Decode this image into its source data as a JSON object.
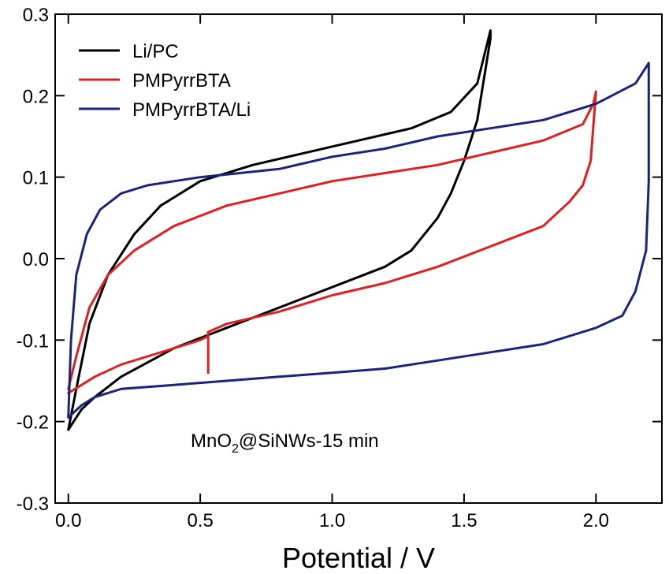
{
  "chart_data": {
    "type": "line",
    "xlabel": "Potential / V",
    "ylabel": "",
    "xlim": [
      -0.05,
      2.25
    ],
    "ylim": [
      -0.3,
      0.3
    ],
    "xticks": [
      "0.0",
      "0.5",
      "1.0",
      "1.5",
      "2.0"
    ],
    "yticks": [
      "-0.3",
      "-0.2",
      "-0.1",
      "0.0",
      "0.1",
      "0.2",
      "0.3"
    ],
    "grid": false,
    "legend_position": "top-left",
    "annotation": {
      "prefix": "MnO",
      "subscript": "2",
      "suffix": "@SiNWs-15 min"
    },
    "series": [
      {
        "name": "Li/PC",
        "color": "#000000",
        "x": [
          0.0,
          0.03,
          0.08,
          0.15,
          0.25,
          0.35,
          0.5,
          0.7,
          0.9,
          1.1,
          1.3,
          1.45,
          1.55,
          1.6,
          1.6,
          1.55,
          1.5,
          1.45,
          1.4,
          1.3,
          1.2,
          1.0,
          0.8,
          0.6,
          0.4,
          0.2,
          0.1,
          0.05,
          0.02,
          0.0
        ],
        "y": [
          -0.21,
          -0.16,
          -0.08,
          -0.02,
          0.03,
          0.065,
          0.095,
          0.115,
          0.13,
          0.145,
          0.16,
          0.18,
          0.215,
          0.28,
          0.27,
          0.17,
          0.12,
          0.08,
          0.05,
          0.01,
          -0.01,
          -0.035,
          -0.06,
          -0.085,
          -0.11,
          -0.145,
          -0.17,
          -0.185,
          -0.2,
          -0.21
        ]
      },
      {
        "name": "PMPyrrBTA",
        "color": "#e02020",
        "x": [
          0.0,
          0.03,
          0.08,
          0.15,
          0.25,
          0.4,
          0.6,
          0.8,
          1.0,
          1.2,
          1.4,
          1.6,
          1.8,
          1.95,
          1.99,
          2.0,
          1.98,
          1.95,
          1.9,
          1.8,
          1.6,
          1.4,
          1.2,
          1.0,
          0.8,
          0.6,
          0.53,
          0.53,
          0.53,
          0.5,
          0.4,
          0.3,
          0.2,
          0.1,
          0.05,
          0.0
        ],
        "y": [
          -0.16,
          -0.12,
          -0.06,
          -0.02,
          0.01,
          0.04,
          0.065,
          0.08,
          0.095,
          0.105,
          0.115,
          0.13,
          0.145,
          0.165,
          0.19,
          0.205,
          0.12,
          0.09,
          0.07,
          0.04,
          0.015,
          -0.01,
          -0.03,
          -0.045,
          -0.065,
          -0.08,
          -0.09,
          -0.14,
          -0.095,
          -0.1,
          -0.11,
          -0.12,
          -0.13,
          -0.145,
          -0.155,
          -0.165
        ]
      },
      {
        "name": "PMPyrrBTA/Li",
        "color": "#1a237e",
        "x": [
          0.0,
          0.01,
          0.03,
          0.07,
          0.12,
          0.2,
          0.3,
          0.5,
          0.8,
          1.0,
          1.2,
          1.4,
          1.6,
          1.8,
          2.0,
          2.15,
          2.2,
          2.2,
          2.19,
          2.15,
          2.1,
          2.0,
          1.8,
          1.6,
          1.4,
          1.2,
          1.0,
          0.8,
          0.6,
          0.4,
          0.2,
          0.1,
          0.05,
          0.0
        ],
        "y": [
          -0.195,
          -0.1,
          -0.02,
          0.03,
          0.06,
          0.08,
          0.09,
          0.1,
          0.11,
          0.125,
          0.135,
          0.15,
          0.16,
          0.17,
          0.19,
          0.215,
          0.24,
          0.095,
          0.01,
          -0.04,
          -0.07,
          -0.085,
          -0.105,
          -0.115,
          -0.125,
          -0.135,
          -0.14,
          -0.145,
          -0.15,
          -0.155,
          -0.16,
          -0.17,
          -0.18,
          -0.195
        ]
      }
    ]
  }
}
